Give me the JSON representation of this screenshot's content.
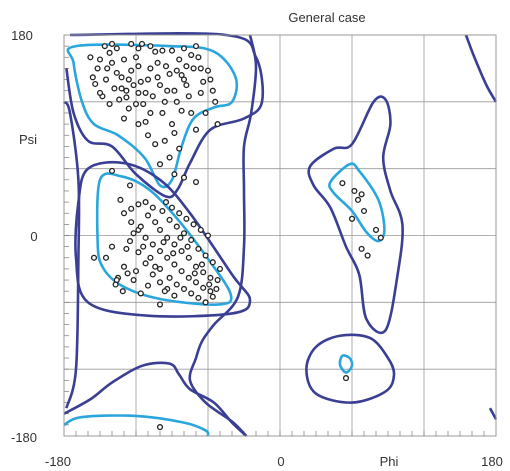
{
  "chart_data": {
    "type": "scatter",
    "title": "General case",
    "xlabel": "Phi",
    "ylabel": "Psi",
    "xlim": [
      -180,
      180
    ],
    "ylim": [
      -180,
      180
    ],
    "x_tick_labels": [
      "-180",
      "0",
      "180"
    ],
    "y_tick_labels": [
      "180",
      "0",
      "-180"
    ],
    "grid": true,
    "colors": {
      "points": "#222222",
      "favoured_contour": "#2aa6dc",
      "allowed_contour": "#3a3f94",
      "grid": "#999999"
    },
    "contours": [
      {
        "level": "favoured",
        "points": [
          [
            -170,
            170
          ],
          [
            -90,
            170
          ],
          [
            -55,
            165
          ],
          [
            -37,
            142
          ],
          [
            -40,
            120
          ],
          [
            -55,
            115
          ],
          [
            -72,
            105
          ],
          [
            -82,
            80
          ],
          [
            -90,
            50
          ],
          [
            -100,
            45
          ],
          [
            -113,
            70
          ],
          [
            -135,
            90
          ],
          [
            -155,
            100
          ],
          [
            -165,
            120
          ],
          [
            -172,
            155
          ]
        ]
      },
      {
        "level": "allowed",
        "points": [
          [
            -175,
            180
          ],
          [
            -45,
            180
          ],
          [
            -20,
            160
          ],
          [
            -15,
            120
          ],
          [
            -30,
            105
          ],
          [
            -58,
            95
          ],
          [
            -75,
            65
          ],
          [
            -85,
            42
          ],
          [
            -95,
            35
          ],
          [
            -120,
            55
          ],
          [
            -140,
            80
          ],
          [
            -160,
            85
          ],
          [
            -172,
            110
          ],
          [
            -178,
            150
          ]
        ]
      },
      {
        "level": "favoured",
        "points": [
          [
            -150,
            50
          ],
          [
            -132,
            53
          ],
          [
            -110,
            42
          ],
          [
            -88,
            18
          ],
          [
            -62,
            -18
          ],
          [
            -41,
            -53
          ],
          [
            -52,
            -62
          ],
          [
            -100,
            -57
          ],
          [
            -132,
            -45
          ],
          [
            -148,
            -28
          ],
          [
            -152,
            -5
          ]
        ]
      },
      {
        "level": "allowed",
        "points": [
          [
            -160,
            60
          ],
          [
            -130,
            65
          ],
          [
            -100,
            50
          ],
          [
            -75,
            20
          ],
          [
            -40,
            -35
          ],
          [
            -25,
            -58
          ],
          [
            -40,
            -70
          ],
          [
            -110,
            -72
          ],
          [
            -160,
            -60
          ],
          [
            -170,
            -20
          ],
          [
            -168,
            30
          ]
        ]
      },
      {
        "level": "favoured",
        "points": [
          [
            42,
            48
          ],
          [
            58,
            64
          ],
          [
            66,
            58
          ],
          [
            82,
            32
          ],
          [
            87,
            5
          ],
          [
            82,
            -5
          ],
          [
            72,
            3
          ],
          [
            60,
            22
          ],
          [
            45,
            38
          ]
        ]
      },
      {
        "level": "allowed",
        "points": [
          [
            25,
            62
          ],
          [
            45,
            78
          ],
          [
            60,
            82
          ],
          [
            78,
            120
          ],
          [
            88,
            122
          ],
          [
            92,
            100
          ],
          [
            86,
            70
          ],
          [
            92,
            40
          ],
          [
            102,
            10
          ],
          [
            98,
            -35
          ],
          [
            88,
            -85
          ],
          [
            72,
            -75
          ],
          [
            66,
            -35
          ],
          [
            55,
            -10
          ],
          [
            42,
            25
          ],
          [
            28,
            45
          ]
        ]
      },
      {
        "level": "favoured",
        "points": [
          [
            55,
            -123
          ],
          [
            60,
            -117
          ],
          [
            58,
            -110
          ],
          [
            52,
            -108
          ],
          [
            50,
            -116
          ]
        ]
      },
      {
        "level": "allowed",
        "points": [
          [
            30,
            -100
          ],
          [
            50,
            -90
          ],
          [
            75,
            -92
          ],
          [
            90,
            -110
          ],
          [
            95,
            -125
          ],
          [
            88,
            -140
          ],
          [
            60,
            -150
          ],
          [
            30,
            -142
          ],
          [
            22,
            -120
          ]
        ]
      },
      {
        "level": "favoured",
        "points": [
          [
            -180,
            -170
          ],
          [
            -165,
            -163
          ],
          [
            -120,
            -162
          ],
          [
            -80,
            -168
          ],
          [
            -62,
            -175
          ],
          [
            -60,
            -180
          ]
        ]
      },
      {
        "level": "allowed",
        "points": [
          [
            -180,
            -160
          ],
          [
            -158,
            -147
          ],
          [
            -140,
            -132
          ],
          [
            -115,
            -117
          ],
          [
            -92,
            -115
          ],
          [
            -84,
            -125
          ],
          [
            -75,
            -138
          ],
          [
            -55,
            -150
          ],
          [
            -40,
            -168
          ],
          [
            -28,
            -180
          ]
        ]
      },
      {
        "level": "allowed",
        "points": [
          [
            -25,
            180
          ],
          [
            -20,
            152
          ],
          [
            -24,
            110
          ],
          [
            -30,
            80
          ],
          [
            -30,
            40
          ],
          [
            -30,
            -10
          ],
          [
            -35,
            -55
          ],
          [
            -55,
            -80
          ],
          [
            -65,
            -95
          ],
          [
            -70,
            -110
          ],
          [
            -75,
            -130
          ],
          [
            -62,
            -150
          ],
          [
            -40,
            -167
          ],
          [
            -28,
            -180
          ]
        ]
      },
      {
        "level": "allowed",
        "points": [
          [
            -180,
            120
          ],
          [
            -175,
            110
          ],
          [
            -168,
            50
          ],
          [
            -168,
            -20
          ],
          [
            -170,
            -120
          ],
          [
            -178,
            -155
          ]
        ]
      },
      {
        "level": "allowed",
        "points": [
          [
            180,
            -165
          ],
          [
            175,
            -155
          ]
        ]
      },
      {
        "level": "allowed",
        "points": [
          [
            155,
            180
          ],
          [
            162,
            160
          ],
          [
            172,
            135
          ],
          [
            180,
            120
          ]
        ]
      }
    ],
    "points": [
      [
        -158,
        160
      ],
      [
        -152,
        150
      ],
      [
        -145,
        140
      ],
      [
        -140,
        155
      ],
      [
        -136,
        168
      ],
      [
        -132,
        142
      ],
      [
        -128,
        130
      ],
      [
        -124,
        148
      ],
      [
        -120,
        160
      ],
      [
        -116,
        138
      ],
      [
        -112,
        128
      ],
      [
        -108,
        150
      ],
      [
        -104,
        165
      ],
      [
        -100,
        135
      ],
      [
        -96,
        120
      ],
      [
        -92,
        145
      ],
      [
        -88,
        130
      ],
      [
        -84,
        158
      ],
      [
        -80,
        140
      ],
      [
        -76,
        125
      ],
      [
        -72,
        150
      ],
      [
        -68,
        160
      ],
      [
        -64,
        138
      ],
      [
        -60,
        148
      ],
      [
        -56,
        130
      ],
      [
        -154,
        136
      ],
      [
        -148,
        125
      ],
      [
        -142,
        118
      ],
      [
        -138,
        132
      ],
      [
        -134,
        122
      ],
      [
        -130,
        158
      ],
      [
        -126,
        114
      ],
      [
        -122,
        135
      ],
      [
        -118,
        152
      ],
      [
        -114,
        118
      ],
      [
        -110,
        140
      ],
      [
        -106,
        125
      ],
      [
        -102,
        155
      ],
      [
        -98,
        110
      ],
      [
        -94,
        130
      ],
      [
        -90,
        100
      ],
      [
        -86,
        120
      ],
      [
        -82,
        112
      ],
      [
        -78,
        135
      ],
      [
        -74,
        110
      ],
      [
        -70,
        95
      ],
      [
        -66,
        128
      ],
      [
        -62,
        110
      ],
      [
        -58,
        140
      ],
      [
        -54,
        120
      ],
      [
        -52,
        100
      ],
      [
        -146,
        170
      ],
      [
        -140,
        172
      ],
      [
        -124,
        172
      ],
      [
        -118,
        168
      ],
      [
        -108,
        170
      ],
      [
        -98,
        166
      ],
      [
        -90,
        166
      ],
      [
        -80,
        168
      ],
      [
        -70,
        170
      ],
      [
        -130,
        105
      ],
      [
        -118,
        100
      ],
      [
        -110,
        90
      ],
      [
        -104,
        82
      ],
      [
        -96,
        85
      ],
      [
        -88,
        92
      ],
      [
        -84,
        78
      ],
      [
        -92,
        70
      ],
      [
        -100,
        64
      ],
      [
        -112,
        102
      ],
      [
        -120,
        118
      ],
      [
        -128,
        124
      ],
      [
        -136,
        146
      ],
      [
        -144,
        150
      ],
      [
        -150,
        128
      ],
      [
        -156,
        142
      ],
      [
        -115,
        172
      ],
      [
        -102,
        142
      ],
      [
        -95,
        152
      ],
      [
        -86,
        148
      ],
      [
        -78,
        152
      ],
      [
        -66,
        150
      ],
      [
        -74,
        162
      ],
      [
        -82,
        144
      ],
      [
        -108,
        110
      ],
      [
        -118,
        128
      ],
      [
        -132,
        132
      ],
      [
        -126,
        140
      ],
      [
        -142,
        164
      ],
      [
        -150,
        158
      ],
      [
        -88,
        55
      ],
      [
        -80,
        52
      ],
      [
        -70,
        48
      ],
      [
        -140,
        58
      ],
      [
        -130,
        20
      ],
      [
        -124,
        12
      ],
      [
        -118,
        5
      ],
      [
        -112,
        -2
      ],
      [
        -106,
        -8
      ],
      [
        -100,
        -14
      ],
      [
        -94,
        -20
      ],
      [
        -88,
        -26
      ],
      [
        -82,
        -32
      ],
      [
        -76,
        -38
      ],
      [
        -70,
        -42
      ],
      [
        -64,
        -47
      ],
      [
        -58,
        -50
      ],
      [
        -125,
        -5
      ],
      [
        -118,
        -15
      ],
      [
        -112,
        -25
      ],
      [
        -106,
        -35
      ],
      [
        -100,
        -42
      ],
      [
        -94,
        -48
      ],
      [
        -88,
        -54
      ],
      [
        -100,
        5
      ],
      [
        -94,
        -2
      ],
      [
        -88,
        -8
      ],
      [
        -82,
        -14
      ],
      [
        -76,
        -20
      ],
      [
        -70,
        -28
      ],
      [
        -64,
        -33
      ],
      [
        -58,
        -38
      ],
      [
        -110,
        18
      ],
      [
        -104,
        12
      ],
      [
        -98,
        22
      ],
      [
        -92,
        14
      ],
      [
        -86,
        8
      ],
      [
        -80,
        2
      ],
      [
        -74,
        -4
      ],
      [
        -68,
        -12
      ],
      [
        -62,
        -18
      ],
      [
        -56,
        -24
      ],
      [
        -52,
        -40
      ],
      [
        -50,
        -30
      ],
      [
        -118,
        28
      ],
      [
        -112,
        30
      ],
      [
        -106,
        25
      ],
      [
        -95,
        30
      ],
      [
        -90,
        25
      ],
      [
        -84,
        20
      ],
      [
        -78,
        15
      ],
      [
        -72,
        10
      ],
      [
        -66,
        5
      ],
      [
        -60,
        0
      ],
      [
        -135,
        -38
      ],
      [
        -130,
        -28
      ],
      [
        -122,
        -40
      ],
      [
        -116,
        -52
      ],
      [
        -110,
        -45
      ],
      [
        -140,
        -10
      ],
      [
        -145,
        -20
      ],
      [
        -100,
        -30
      ],
      [
        -92,
        -38
      ],
      [
        -86,
        -44
      ],
      [
        -80,
        -48
      ],
      [
        -74,
        -52
      ],
      [
        -68,
        -56
      ],
      [
        -62,
        -60
      ],
      [
        -56,
        -55
      ],
      [
        -136,
        -40
      ],
      [
        -128,
        -12
      ],
      [
        -120,
        -32
      ],
      [
        -96,
        -50
      ],
      [
        -104,
        -28
      ],
      [
        -114,
        -10
      ],
      [
        -108,
        -20
      ],
      [
        -122,
        2
      ],
      [
        -116,
        8
      ],
      [
        -89,
        -16
      ],
      [
        -77,
        -10
      ],
      [
        -71,
        -34
      ],
      [
        -83,
        -2
      ],
      [
        -97,
        -6
      ],
      [
        -65,
        -26
      ],
      [
        -59,
        -44
      ],
      [
        -53,
        -48
      ],
      [
        -131,
        -50
      ],
      [
        -137,
        -44
      ],
      [
        -127,
        -34
      ],
      [
        -133,
        32
      ],
      [
        -124,
        24
      ],
      [
        -155,
        -20
      ],
      [
        -100,
        -62
      ],
      [
        -125,
        45
      ],
      [
        52,
        47
      ],
      [
        62,
        40
      ],
      [
        68,
        37
      ],
      [
        65,
        32
      ],
      [
        70,
        22
      ],
      [
        60,
        15
      ],
      [
        80,
        5
      ],
      [
        84,
        -2
      ],
      [
        73,
        -18
      ],
      [
        68,
        -12
      ],
      [
        55,
        -128
      ],
      [
        -100,
        -172
      ]
    ]
  }
}
